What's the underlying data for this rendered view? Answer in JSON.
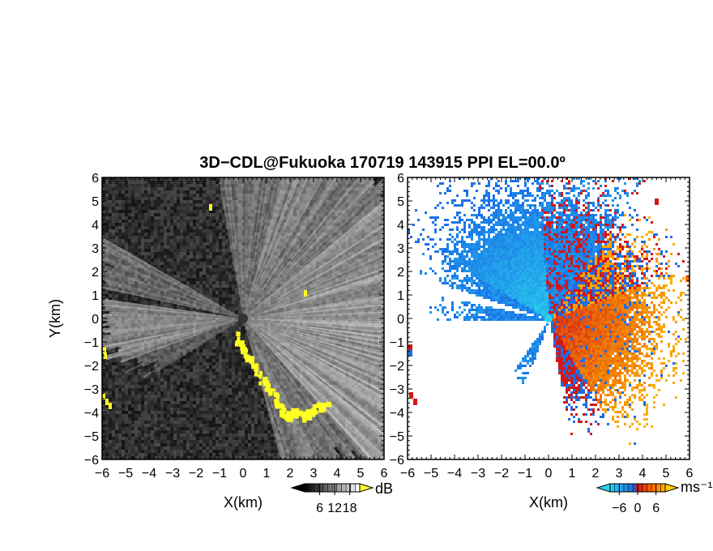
{
  "figure": {
    "title": "3D−CDL@Fukuoka 170719 143915 PPI EL=00.0º"
  },
  "chart_data": [
    {
      "type": "heatmap",
      "panel": "left",
      "xlabel": "X(km)",
      "ylabel": "Y(km)",
      "xlim": [
        -6,
        6
      ],
      "ylim": [
        -6,
        6
      ],
      "xticks": [
        "−6",
        "−5",
        "−4",
        "−3",
        "−2",
        "−1",
        "0",
        "1",
        "2",
        "3",
        "4",
        "5",
        "6"
      ],
      "yticks": [
        "−6",
        "−5",
        "−4",
        "−3",
        "−2",
        "−1",
        "0",
        "1",
        "2",
        "3",
        "4",
        "5",
        "6"
      ],
      "colorbar": {
        "unit": "dB",
        "ticks": [
          "6",
          "12",
          "18"
        ],
        "tick_values": [
          6,
          12,
          18
        ],
        "range": [
          0,
          22
        ],
        "colors": [
          "#000000",
          "#ffffff"
        ],
        "over_color": "#ffff33"
      },
      "background_color": "#2a2a2a",
      "highlight_color": "#ffff22"
    },
    {
      "type": "heatmap",
      "panel": "right",
      "xlabel": "X(km)",
      "ylabel": "",
      "xlim": [
        -6,
        6
      ],
      "ylim": [
        -6,
        6
      ],
      "xticks": [
        "−6",
        "−5",
        "−4",
        "−3",
        "−2",
        "−1",
        "0",
        "1",
        "2",
        "3",
        "4",
        "5",
        "6"
      ],
      "yticks": [
        "−6",
        "−5",
        "−4",
        "−3",
        "−2",
        "−1",
        "0",
        "1",
        "2",
        "3",
        "4",
        "5",
        "6"
      ],
      "colorbar": {
        "unit": "ms⁻¹",
        "ticks": [
          "−6",
          "0",
          "6"
        ],
        "tick_values": [
          -6,
          0,
          6
        ],
        "range": [
          -9,
          9
        ],
        "colors": [
          "#2ad4ee",
          "#1a6ee8",
          "#d21818",
          "#ff6a00",
          "#ffb000"
        ],
        "under_color": "#2ad4ee",
        "over_color": "#ffcc00"
      },
      "background_color": "#ffffff"
    }
  ]
}
